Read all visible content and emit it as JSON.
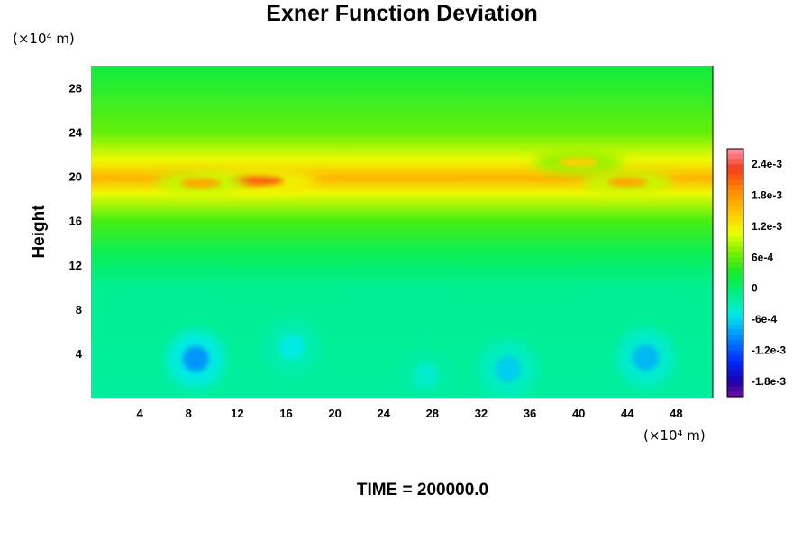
{
  "chart_data": {
    "type": "heatmap",
    "title": "Exner Function Deviation",
    "ylabel": "Height",
    "x_unit_label": "(×10⁴ m)",
    "y_unit_label": "(×10⁴ m)",
    "footer": "TIME = 200000.0",
    "xlim": [
      0,
      51
    ],
    "ylim": [
      0,
      30
    ],
    "x_ticks": [
      "4",
      "8",
      "12",
      "16",
      "20",
      "24",
      "28",
      "32",
      "36",
      "40",
      "44",
      "48"
    ],
    "y_ticks": [
      "4",
      "8",
      "12",
      "16",
      "20",
      "24",
      "28"
    ],
    "colorbar": {
      "range": [
        -0.0021,
        0.0027
      ],
      "ticks": [
        {
          "label": "2.4e-3",
          "value": 0.0024
        },
        {
          "label": "1.8e-3",
          "value": 0.0018
        },
        {
          "label": "1.2e-3",
          "value": 0.0012
        },
        {
          "label": "6e-4",
          "value": 0.0006
        },
        {
          "label": "0",
          "value": 0
        },
        {
          "label": "-6e-4",
          "value": -0.0006
        },
        {
          "label": "-1.2e-3",
          "value": -0.0012
        },
        {
          "label": "-1.8e-3",
          "value": -0.0018
        }
      ]
    },
    "field_profile": [
      {
        "height": 0,
        "value": -0.0002
      },
      {
        "height": 10,
        "value": -0.00015
      },
      {
        "height": 13,
        "value": 0.0001
      },
      {
        "height": 16,
        "value": 0.0005
      },
      {
        "height": 18.5,
        "value": 0.0011
      },
      {
        "height": 19.8,
        "value": 0.0016
      },
      {
        "height": 21.5,
        "value": 0.0011
      },
      {
        "height": 24,
        "value": 0.0006
      },
      {
        "height": 30,
        "value": 0.0002
      }
    ],
    "features": [
      {
        "x": 13.5,
        "y": 19.6,
        "value": 0.0021
      },
      {
        "x": 9,
        "y": 19.4,
        "value": 0.0017
      },
      {
        "x": 44,
        "y": 19.5,
        "value": 0.0017
      },
      {
        "x": 40,
        "y": 21.3,
        "value": 0.0014
      },
      {
        "x": 8.6,
        "y": 3.5,
        "value": -0.0009
      },
      {
        "x": 45.5,
        "y": 3.6,
        "value": -0.00075
      },
      {
        "x": 34.2,
        "y": 2.6,
        "value": -0.00065
      },
      {
        "x": 16.5,
        "y": 4.6,
        "value": -0.0005
      },
      {
        "x": 27.5,
        "y": 2.0,
        "value": -0.0004
      }
    ]
  }
}
